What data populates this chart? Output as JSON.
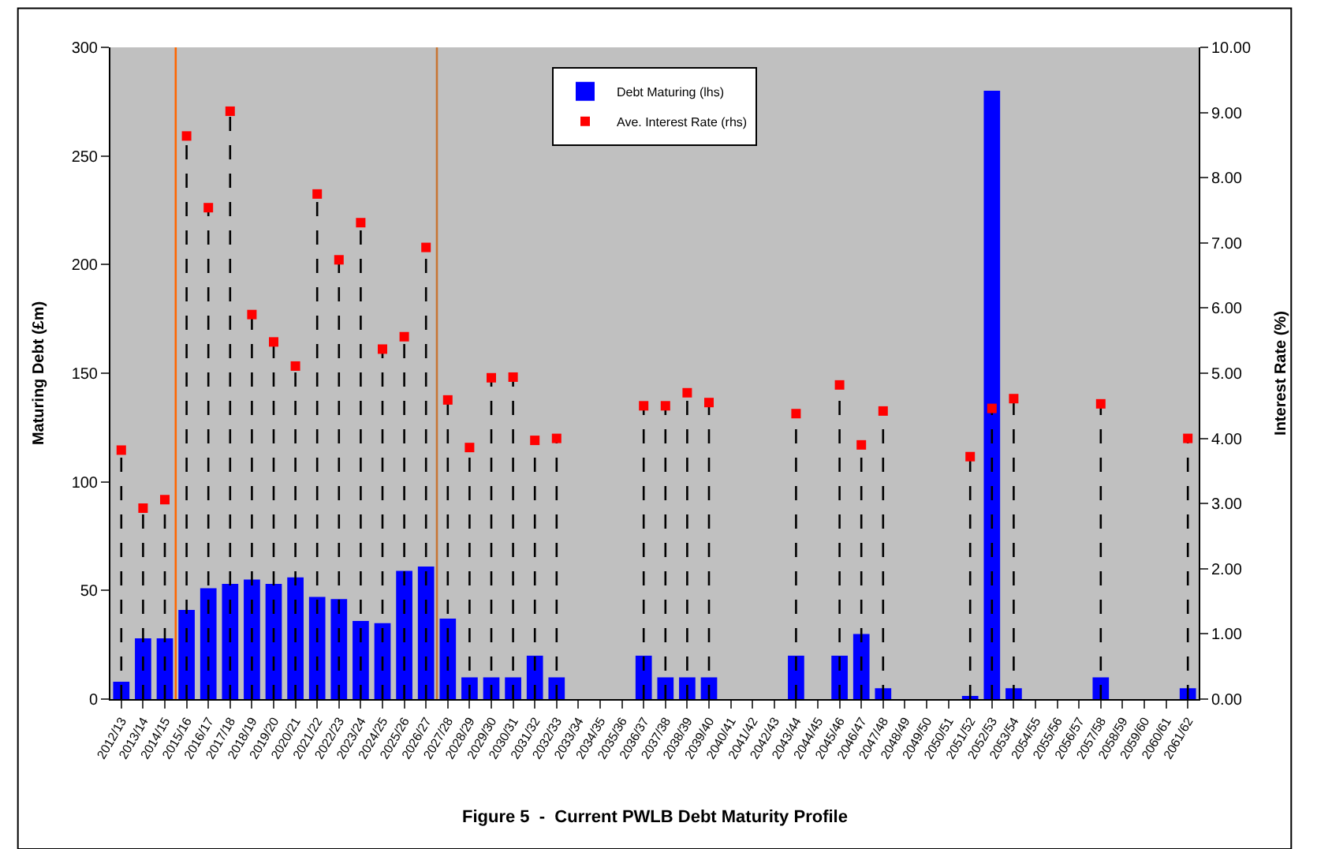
{
  "chart_data": {
    "type": "bar",
    "title": "Figure 5  -  Current PWLB Debt Maturity Profile",
    "ylabel": "Maturing Debt (£m)",
    "y2label": "Interest Rate (%)",
    "categories": [
      "2012/13",
      "2013/14",
      "2014/15",
      "2015/16",
      "2016/17",
      "2017/18",
      "2018/19",
      "2019/20",
      "2020/21",
      "2021/22",
      "2022/23",
      "2023/24",
      "2024/25",
      "2025/26",
      "2026/27",
      "2027/28",
      "2028/29",
      "2029/30",
      "2030/31",
      "2031/32",
      "2032/33",
      "2033/34",
      "2034/35",
      "2035/36",
      "2036/37",
      "2037/38",
      "2038/39",
      "2039/40",
      "2040/41",
      "2041/42",
      "2042/43",
      "2043/44",
      "2044/45",
      "2045/46",
      "2046/47",
      "2047/48",
      "2048/49",
      "2049/50",
      "2050/51",
      "2051/52",
      "2052/53",
      "2053/54",
      "2054/55",
      "2055/56",
      "2056/57",
      "2057/58",
      "2058/59",
      "2059/60",
      "2060/61",
      "2061/62"
    ],
    "series": [
      {
        "name": "Debt Maturing (lhs)",
        "color": "#0000ff",
        "values": [
          8,
          28,
          28,
          41,
          51,
          53,
          55,
          53,
          56,
          47,
          46,
          36,
          35,
          59,
          61,
          37,
          10,
          10,
          10,
          20,
          10,
          0,
          0,
          0,
          20,
          10,
          10,
          10,
          0,
          0,
          0,
          20,
          0,
          20,
          30,
          5,
          0,
          0,
          0,
          1,
          280,
          5,
          0,
          0,
          0,
          10,
          0,
          0,
          0,
          5
        ]
      },
      {
        "name": "Ave. Interest Rate (rhs)",
        "type": "lollipop",
        "axis": "y2",
        "line_style": "dashed",
        "marker": "square",
        "color": "#ff0000",
        "values": [
          3.82,
          2.93,
          3.06,
          8.64,
          7.54,
          9.02,
          5.9,
          5.48,
          5.11,
          7.75,
          6.74,
          7.31,
          5.37,
          5.56,
          6.93,
          4.59,
          3.86,
          4.93,
          4.94,
          3.97,
          4.0,
          null,
          null,
          null,
          4.5,
          4.5,
          4.7,
          4.55,
          null,
          null,
          null,
          4.38,
          null,
          4.82,
          3.9,
          4.42,
          null,
          null,
          null,
          3.72,
          4.46,
          4.61,
          null,
          null,
          null,
          4.53,
          null,
          null,
          null,
          4.0
        ]
      }
    ],
    "ylim": [
      0,
      300
    ],
    "yticks": [
      0,
      50,
      100,
      150,
      200,
      250,
      300
    ],
    "y2lim": [
      0,
      10
    ],
    "y2ticks": [
      {
        "value": 0,
        "label": "0.00"
      },
      {
        "value": 1,
        "label": "1.00"
      },
      {
        "value": 2,
        "label": "2.00"
      },
      {
        "value": 3,
        "label": "3.00"
      },
      {
        "value": 4,
        "label": "4.00"
      },
      {
        "value": 5,
        "label": "5.00"
      },
      {
        "value": 6,
        "label": "6.00"
      },
      {
        "value": 7,
        "label": "7.00"
      },
      {
        "value": 8,
        "label": "8.00"
      },
      {
        "value": 9,
        "label": "9.00"
      },
      {
        "value": 10,
        "label": "10.00"
      }
    ],
    "ref_lines": [
      {
        "axis": "x",
        "value": "2015/16",
        "color": "#ff6600"
      },
      {
        "axis": "x",
        "value": "2027/28",
        "color": "#c87533"
      }
    ],
    "grid": false,
    "legend": "top"
  }
}
